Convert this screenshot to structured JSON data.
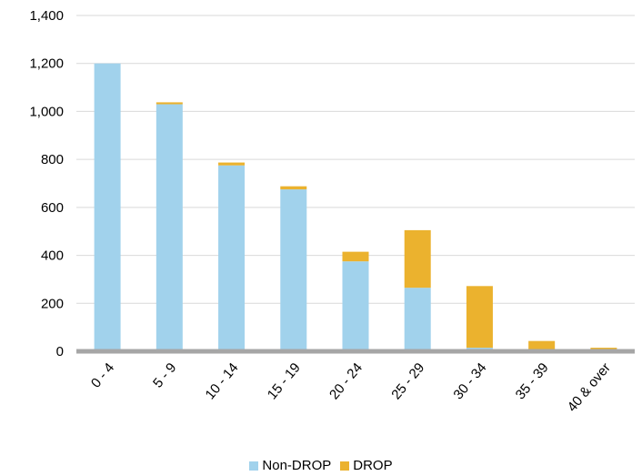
{
  "chart_data": {
    "type": "bar",
    "stacked": true,
    "categories": [
      "0 - 4",
      "5 - 9",
      "10 - 14",
      "15 - 19",
      "20 - 24",
      "25 - 29",
      "30 - 34",
      "35 - 39",
      "40 & over"
    ],
    "series": [
      {
        "name": "Non-DROP",
        "color": "#a1d2ec",
        "values": [
          1200,
          1030,
          775,
          675,
          375,
          265,
          15,
          5,
          5
        ]
      },
      {
        "name": "DROP",
        "color": "#ebb22e",
        "values": [
          0,
          8,
          12,
          13,
          40,
          240,
          257,
          38,
          10
        ]
      }
    ],
    "ylim": [
      0,
      1400
    ],
    "yticks": [
      "0",
      "200",
      "400",
      "600",
      "800",
      "1,000",
      "1,200",
      "1,400"
    ],
    "grid": true,
    "legend_position": "bottom"
  }
}
